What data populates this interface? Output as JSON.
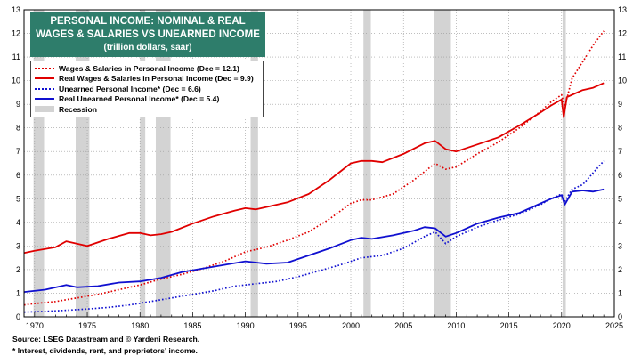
{
  "title": {
    "line1": "PERSONAL INCOME: NOMINAL & REAL",
    "line2": "WAGES & SALARIES VS UNEARNED INCOME",
    "line3": "(trillion dollars, saar)"
  },
  "legend": [
    {
      "label": "Wages & Salaries in Personal Income (Dec = 12.1)",
      "color": "#e00000",
      "style": "dotted"
    },
    {
      "label": "Real Wages & Salaries in Personal Income (Dec = 9.9)",
      "color": "#e00000",
      "style": "solid"
    },
    {
      "label": "Unearned Personal Income* (Dec = 6.6)",
      "color": "#1010d0",
      "style": "dotted"
    },
    {
      "label": "Real Unearned Personal Income* (Dec = 5.4)",
      "color": "#1010d0",
      "style": "solid"
    },
    {
      "label": "Recession",
      "color": "#d3d3d3",
      "style": "band"
    }
  ],
  "footer": {
    "source": "Source: LSEG Datastream and © Yardeni Research.",
    "note": "* Interest, dividends, rent, and proprietors' income."
  },
  "chart_data": {
    "type": "line",
    "xlim": [
      1969,
      2025
    ],
    "ylim": [
      0,
      13
    ],
    "x_ticks": [
      "1970",
      "1975",
      "1980",
      "1985",
      "1990",
      "1995",
      "2000",
      "2005",
      "2010",
      "2015",
      "2020",
      "2025"
    ],
    "y_ticks": [
      "0",
      "1",
      "2",
      "3",
      "4",
      "5",
      "6",
      "7",
      "8",
      "9",
      "10",
      "11",
      "12",
      "13"
    ],
    "recessions": [
      [
        1969.9,
        1970.9
      ],
      [
        1973.9,
        1975.2
      ],
      [
        1980.0,
        1980.5
      ],
      [
        1981.5,
        1982.9
      ],
      [
        1990.5,
        1991.2
      ],
      [
        2001.2,
        2001.9
      ],
      [
        2007.9,
        2009.5
      ],
      [
        2020.1,
        2020.4
      ]
    ],
    "series": [
      {
        "name": "Wages & Salaries in Personal Income (Dec = 12.1)",
        "color": "#e00000",
        "style": "dotted",
        "x": [
          1969,
          1970,
          1972,
          1974,
          1976,
          1978,
          1980,
          1982,
          1984,
          1986,
          1988,
          1990,
          1992,
          1994,
          1996,
          1998,
          2000,
          2001,
          2002,
          2004,
          2006,
          2008,
          2009,
          2010,
          2012,
          2014,
          2016,
          2018,
          2019,
          2020,
          2020.3,
          2021,
          2022,
          2023,
          2024
        ],
        "y": [
          0.5,
          0.56,
          0.65,
          0.8,
          0.95,
          1.15,
          1.35,
          1.6,
          1.8,
          2.05,
          2.35,
          2.75,
          2.95,
          3.25,
          3.6,
          4.15,
          4.8,
          4.95,
          4.95,
          5.2,
          5.8,
          6.5,
          6.25,
          6.35,
          6.9,
          7.4,
          8.0,
          8.7,
          9.1,
          9.4,
          8.9,
          10.1,
          10.8,
          11.5,
          12.1
        ]
      },
      {
        "name": "Real Wages & Salaries in Personal Income (Dec = 9.9)",
        "color": "#e00000",
        "style": "solid",
        "x": [
          1969,
          1970,
          1972,
          1973,
          1975,
          1977,
          1979,
          1980,
          1981,
          1982,
          1983,
          1985,
          1987,
          1989,
          1990,
          1991,
          1992,
          1994,
          1996,
          1998,
          2000,
          2001,
          2002,
          2003,
          2005,
          2007,
          2008,
          2009,
          2010,
          2012,
          2014,
          2016,
          2018,
          2019,
          2020,
          2020.2,
          2020.5,
          2021,
          2022,
          2023,
          2024
        ],
        "y": [
          2.7,
          2.8,
          2.95,
          3.2,
          3.0,
          3.3,
          3.55,
          3.55,
          3.45,
          3.5,
          3.6,
          3.95,
          4.25,
          4.5,
          4.6,
          4.55,
          4.65,
          4.85,
          5.2,
          5.8,
          6.5,
          6.6,
          6.6,
          6.55,
          6.9,
          7.35,
          7.45,
          7.1,
          7.0,
          7.3,
          7.6,
          8.1,
          8.65,
          8.95,
          9.2,
          8.45,
          9.3,
          9.4,
          9.6,
          9.7,
          9.9
        ]
      },
      {
        "name": "Unearned Personal Income* (Dec = 6.6)",
        "color": "#1010d0",
        "style": "dotted",
        "x": [
          1969,
          1971,
          1973,
          1975,
          1977,
          1979,
          1981,
          1983,
          1985,
          1987,
          1989,
          1991,
          1993,
          1995,
          1997,
          1999,
          2001,
          2003,
          2005,
          2007,
          2008,
          2009,
          2010,
          2012,
          2014,
          2016,
          2018,
          2019,
          2020,
          2020.3,
          2021,
          2022,
          2023,
          2024
        ],
        "y": [
          0.2,
          0.23,
          0.28,
          0.33,
          0.4,
          0.5,
          0.65,
          0.8,
          0.95,
          1.1,
          1.3,
          1.4,
          1.5,
          1.7,
          1.95,
          2.2,
          2.5,
          2.6,
          2.9,
          3.4,
          3.6,
          3.1,
          3.4,
          3.8,
          4.1,
          4.35,
          4.75,
          5.0,
          5.2,
          4.9,
          5.4,
          5.6,
          6.1,
          6.6
        ]
      },
      {
        "name": "Real Unearned Personal Income* (Dec = 5.4)",
        "color": "#1010d0",
        "style": "solid",
        "x": [
          1969,
          1971,
          1973,
          1974,
          1976,
          1978,
          1980,
          1982,
          1984,
          1986,
          1988,
          1990,
          1992,
          1994,
          1996,
          1998,
          2000,
          2001,
          2002,
          2004,
          2006,
          2007,
          2008,
          2009,
          2010,
          2012,
          2014,
          2016,
          2018,
          2019,
          2020,
          2020.3,
          2021,
          2022,
          2023,
          2024
        ],
        "y": [
          1.05,
          1.15,
          1.35,
          1.25,
          1.3,
          1.45,
          1.5,
          1.65,
          1.9,
          2.05,
          2.2,
          2.35,
          2.25,
          2.3,
          2.6,
          2.9,
          3.25,
          3.35,
          3.3,
          3.45,
          3.65,
          3.8,
          3.75,
          3.4,
          3.55,
          3.95,
          4.2,
          4.4,
          4.8,
          5.0,
          5.15,
          4.75,
          5.3,
          5.35,
          5.3,
          5.4
        ]
      }
    ]
  }
}
